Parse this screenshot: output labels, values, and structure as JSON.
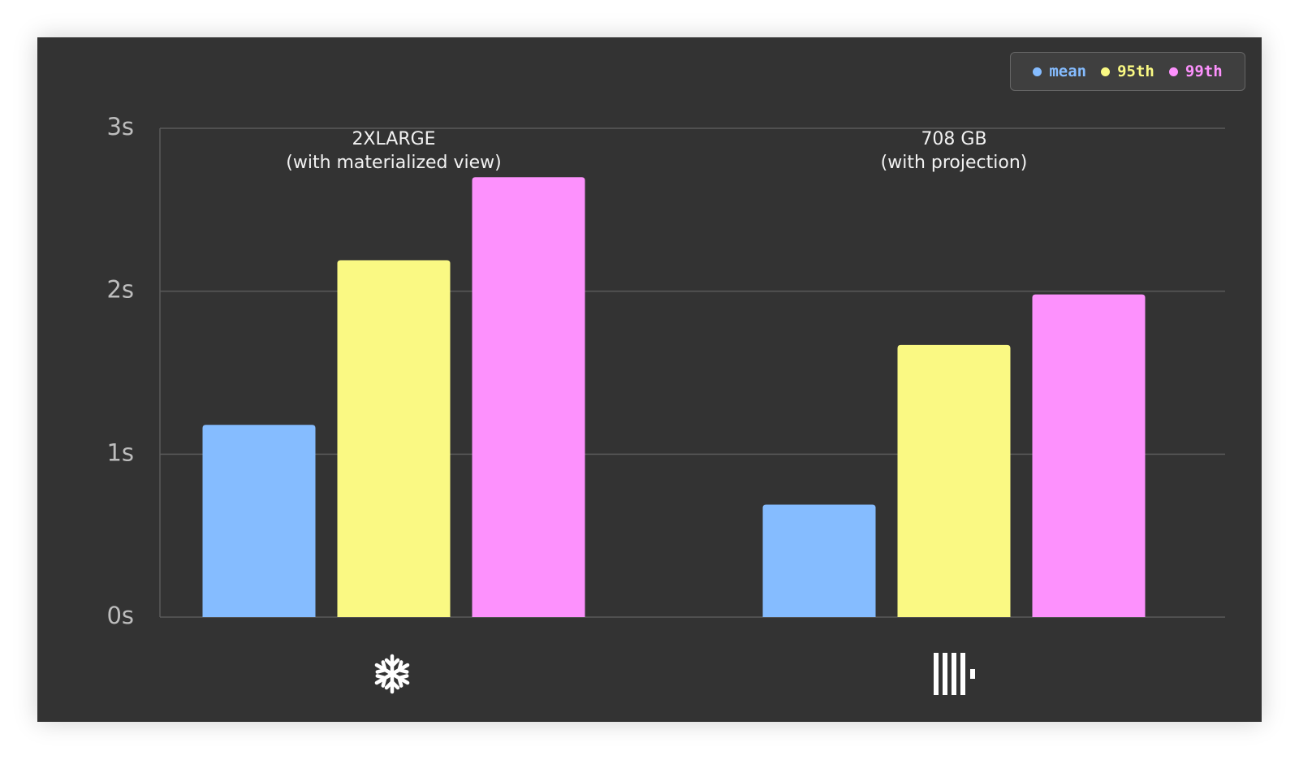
{
  "chart_data": {
    "type": "bar",
    "categories": [
      "2XLARGE\n(with materialized view)",
      "708 GB\n(with projection)"
    ],
    "series": [
      {
        "name": "mean",
        "color": "#85bcff",
        "values": [
          1.18,
          0.69
        ]
      },
      {
        "name": "95th",
        "color": "#faf983",
        "values": [
          2.19,
          1.67
        ]
      },
      {
        "name": "99th",
        "color": "#fd91fd",
        "values": [
          2.7,
          1.98
        ]
      }
    ],
    "ylim": [
      0,
      3
    ],
    "yticks": [
      {
        "value": 0,
        "label": "0s"
      },
      {
        "value": 1,
        "label": "1s"
      },
      {
        "value": 2,
        "label": "2s"
      },
      {
        "value": 3,
        "label": "3s"
      }
    ],
    "grid": true,
    "legend": "top-right"
  }
}
